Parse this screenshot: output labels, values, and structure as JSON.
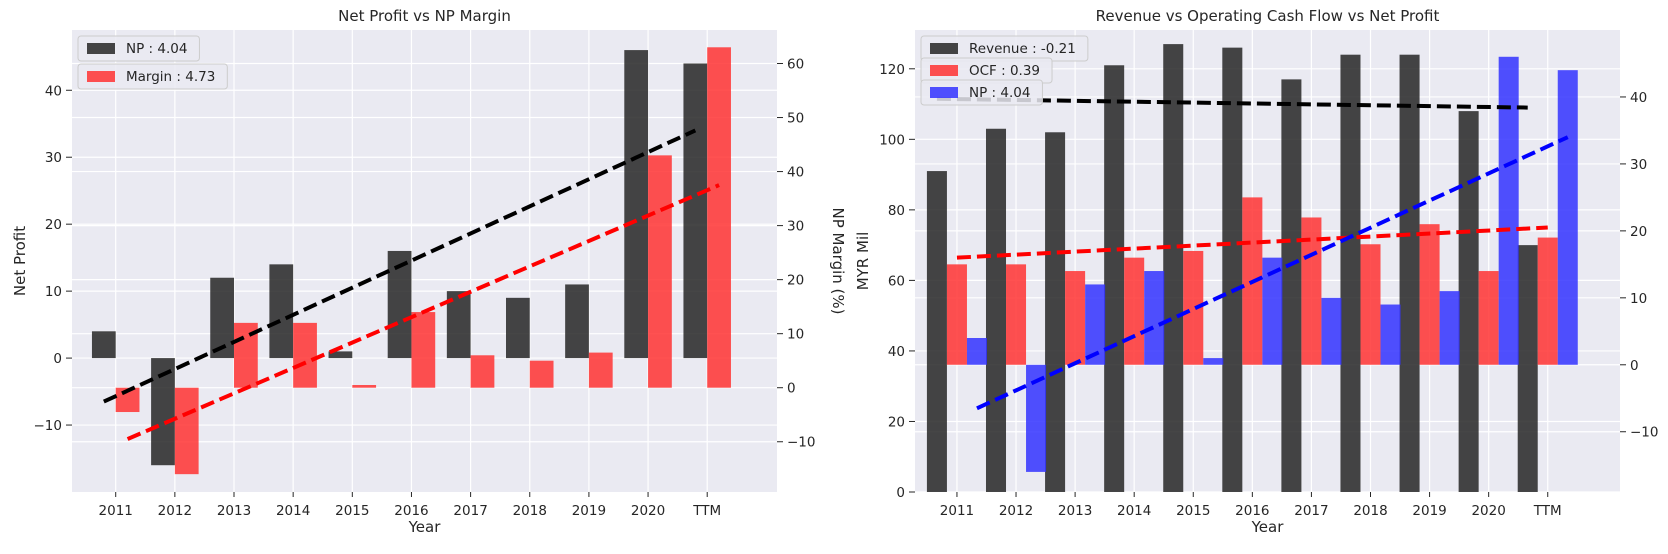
{
  "charts": [
    {
      "type": "bar",
      "title": "Net Profit vs NP Margin",
      "xlabel": "Year",
      "ylabel": "Net Profit",
      "y2label": "NP Margin (%)",
      "categories": [
        "2011",
        "2012",
        "2013",
        "2014",
        "2015",
        "2016",
        "2017",
        "2018",
        "2019",
        "2020",
        "TTM"
      ],
      "ylim": [
        -20,
        49
      ],
      "y2lim": [
        -19.3,
        66.2
      ],
      "yticks": [
        -10,
        0,
        10,
        20,
        30,
        40
      ],
      "y2ticks": [
        -10,
        0,
        10,
        20,
        30,
        40,
        50,
        60
      ],
      "series": [
        {
          "name": "NP",
          "legend": "NP : 4.04",
          "axis": "left",
          "color": "#262626",
          "values": [
            4,
            -16,
            12,
            14,
            1,
            16,
            10,
            9,
            11,
            46,
            44
          ],
          "trend": {
            "from": -6.5,
            "to": 34,
            "color": "#000000"
          }
        },
        {
          "name": "Margin",
          "legend": "Margin : 4.73",
          "axis": "right",
          "color": "#ff3333",
          "values": [
            -4.5,
            -16,
            12,
            12,
            0.5,
            14,
            6,
            5,
            6.5,
            43,
            63
          ],
          "trend": {
            "from": -9.5,
            "to": 37.5,
            "color": "#ff0000"
          }
        }
      ],
      "grid": true,
      "legend_position": "upper-left"
    },
    {
      "type": "bar",
      "title": "Revenue vs Operating Cash Flow vs Net Profit",
      "xlabel": "Year",
      "ylabel": "MYR Mil",
      "categories": [
        "2011",
        "2012",
        "2013",
        "2014",
        "2015",
        "2016",
        "2017",
        "2018",
        "2019",
        "2020",
        "TTM"
      ],
      "ylim": [
        0,
        131
      ],
      "y2lim": [
        -19,
        50
      ],
      "yticks": [
        0,
        20,
        40,
        60,
        80,
        100,
        120
      ],
      "y2ticks": [
        -10,
        0,
        10,
        20,
        30,
        40
      ],
      "series": [
        {
          "name": "Revenue",
          "legend": "Revenue : -0.21",
          "axis": "left",
          "color": "#262626",
          "values": [
            91,
            103,
            102,
            121,
            127,
            126,
            117,
            124,
            124,
            108,
            70
          ],
          "trend": {
            "from": 111.5,
            "to": 109,
            "color": "#000000"
          }
        },
        {
          "name": "OCF",
          "legend": "OCF : 0.39",
          "axis": "right",
          "color": "#ff3333",
          "values": [
            15,
            15,
            14,
            16,
            17,
            25,
            22,
            18,
            21,
            14,
            19
          ],
          "trend": {
            "from": 16,
            "to": 20.5,
            "color": "#ff0000"
          }
        },
        {
          "name": "NP",
          "legend": "NP : 4.04",
          "axis": "right",
          "color": "#3333ff",
          "values": [
            4,
            -16,
            12,
            14,
            1,
            16,
            10,
            9,
            11,
            46,
            44
          ],
          "trend": {
            "from": -6.5,
            "to": 34,
            "color": "#0000ff"
          }
        }
      ],
      "grid": true,
      "legend_position": "upper-left"
    }
  ]
}
